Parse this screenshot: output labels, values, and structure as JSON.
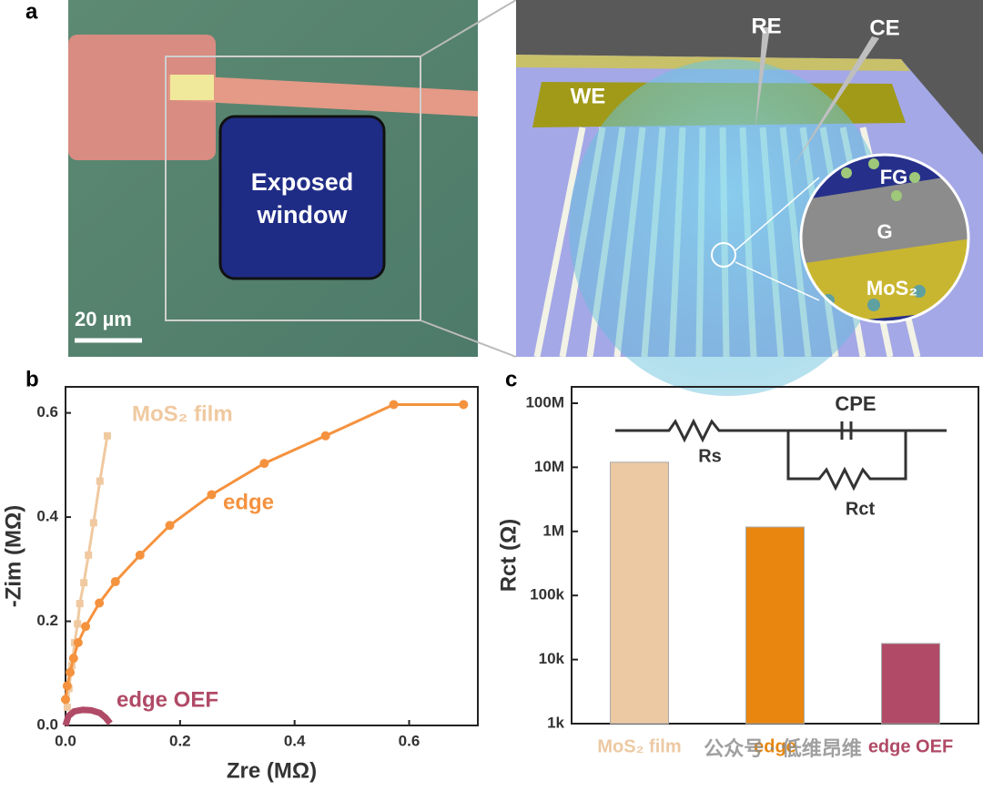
{
  "panel_a": {
    "panel_label": "a",
    "window_label": [
      "Exposed",
      "window"
    ],
    "scale_bar": "20 µm",
    "electrodes": [
      "WE",
      "RE",
      "CE"
    ],
    "layers": [
      "FG",
      "G",
      "MoS₂"
    ]
  },
  "chart_data": [
    {
      "type": "line",
      "panel_label": "b",
      "x_label": "Zre (MΩ)",
      "y_label": "-Zim (MΩ)",
      "xlim": [
        0,
        0.72
      ],
      "ylim": [
        0,
        0.65
      ],
      "xticks": [
        {
          "value": 0,
          "label": "0.0"
        },
        0.2,
        0.4,
        0.6
      ],
      "yticks": [
        {
          "value": 0,
          "label": "0.0"
        },
        0.2,
        0.4,
        0.6
      ],
      "series": [
        {
          "name": "MoS₂ film",
          "color": "#f0c9a0",
          "marker": "square",
          "x": [
            0.003,
            0.006,
            0.011,
            0.016,
            0.021,
            0.025,
            0.032,
            0.04,
            0.049,
            0.06,
            0.073
          ],
          "y": [
            0.035,
            0.071,
            0.115,
            0.159,
            0.195,
            0.234,
            0.274,
            0.327,
            0.389,
            0.469,
            0.556
          ]
        },
        {
          "name": "edge",
          "color": "#f5923e",
          "marker": "circle",
          "x": [
            0.0,
            0.003,
            0.008,
            0.014,
            0.022,
            0.035,
            0.059,
            0.087,
            0.13,
            0.182,
            0.255,
            0.347,
            0.454,
            0.573,
            0.695
          ],
          "y": [
            0.05,
            0.076,
            0.102,
            0.129,
            0.159,
            0.19,
            0.235,
            0.276,
            0.327,
            0.384,
            0.443,
            0.503,
            0.556,
            0.616,
            0.616
          ]
        },
        {
          "name": "edge OEF",
          "color": "#b04a66",
          "marker": "none",
          "x": [
            0,
            0.005,
            0.015,
            0.03,
            0.045,
            0.06,
            0.07,
            0.078
          ],
          "y": [
            0,
            0.018,
            0.027,
            0.03,
            0.029,
            0.024,
            0.015,
            0.004
          ]
        }
      ]
    },
    {
      "type": "bar",
      "panel_label": "c",
      "y_label": "Rct (Ω)",
      "log_scale": true,
      "categories": [
        "MoS₂ film",
        "edge",
        "edge OEF"
      ],
      "values": [
        12000000,
        1170000,
        17800
      ],
      "colors": [
        "#ecc9a3",
        "#e8860f",
        "#b04a66"
      ],
      "ylim": [
        1000,
        180000000
      ],
      "yticks": [
        {
          "value": 1000,
          "label": "1k"
        },
        {
          "value": 10000,
          "label": "10k"
        },
        {
          "value": 100000,
          "label": "100k"
        },
        {
          "value": 1000000,
          "label": "1M"
        },
        {
          "value": 10000000,
          "label": "10M"
        },
        {
          "value": 100000000,
          "label": "100M"
        }
      ],
      "circuit_labels": [
        "CPE",
        "Rs",
        "Rct"
      ]
    }
  ],
  "watermark": "公众号 · 低维昂维"
}
